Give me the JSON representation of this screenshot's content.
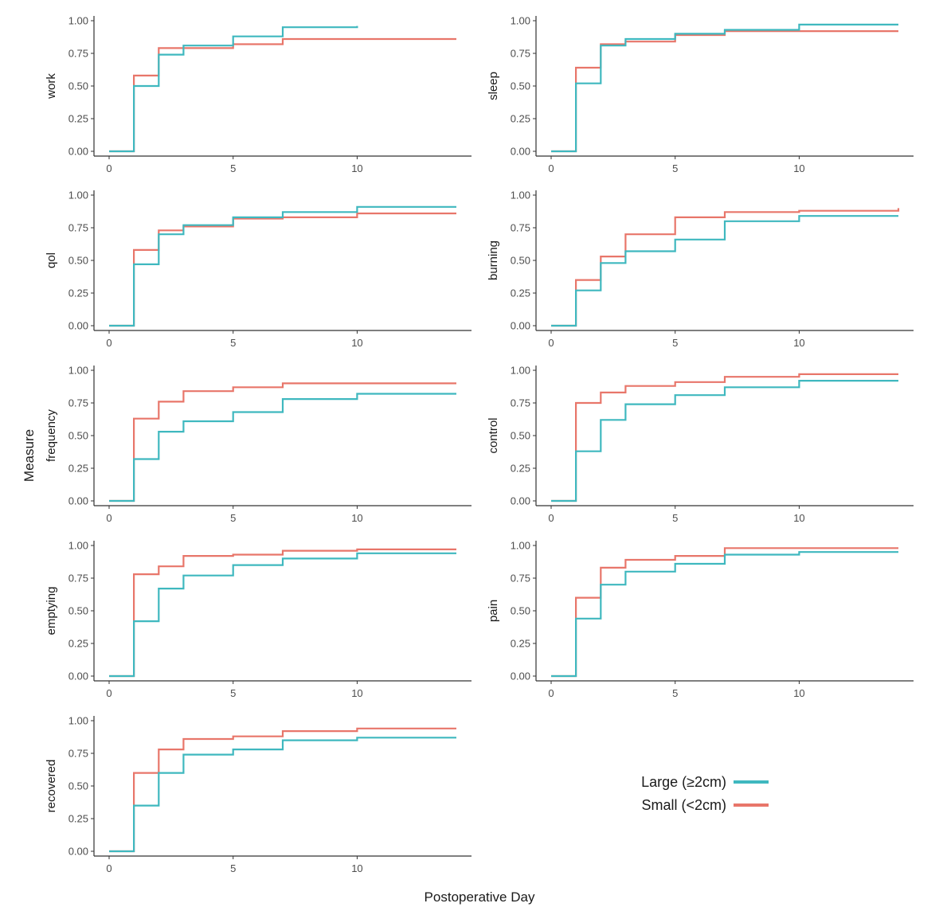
{
  "chart_data": {
    "type": "line",
    "step": "post",
    "xlabel": "Postoperative Day",
    "ylabel": "Measure",
    "xlim": [
      0,
      14
    ],
    "ylim": [
      0,
      1
    ],
    "x_ticks": [
      0,
      5,
      10
    ],
    "x_tick_labels": [
      "0",
      "5",
      "10"
    ],
    "y_ticks": [
      0,
      0.25,
      0.5,
      0.75,
      1
    ],
    "y_tick_labels": [
      "0.00",
      "0.25",
      "0.50",
      "0.75",
      "1.00"
    ],
    "grid": false,
    "legend_position": "bottom-right",
    "legend": [
      {
        "label": "Large (≥2cm)",
        "color": "#3FB8BF"
      },
      {
        "label": "Small (<2cm)",
        "color": "#E8766A"
      }
    ],
    "panels": [
      {
        "label": "work",
        "large": {
          "x": [
            0,
            1,
            2,
            3,
            5,
            7,
            10
          ],
          "y": [
            0,
            0.5,
            0.74,
            0.81,
            0.88,
            0.95,
            0.96
          ]
        },
        "small": {
          "x": [
            0,
            1,
            2,
            3,
            5,
            7,
            14
          ],
          "y": [
            0,
            0.58,
            0.79,
            0.79,
            0.82,
            0.86,
            0.86
          ]
        }
      },
      {
        "label": "sleep",
        "large": {
          "x": [
            0,
            1,
            2,
            3,
            5,
            7,
            10,
            14
          ],
          "y": [
            0,
            0.52,
            0.81,
            0.86,
            0.9,
            0.93,
            0.97,
            0.97
          ]
        },
        "small": {
          "x": [
            0,
            1,
            2,
            3,
            5,
            7,
            10,
            14
          ],
          "y": [
            0,
            0.64,
            0.82,
            0.84,
            0.89,
            0.92,
            0.92,
            0.92
          ]
        }
      },
      {
        "label": "qol",
        "large": {
          "x": [
            0,
            1,
            2,
            3,
            5,
            7,
            10,
            14
          ],
          "y": [
            0,
            0.47,
            0.7,
            0.77,
            0.83,
            0.87,
            0.91,
            0.91
          ]
        },
        "small": {
          "x": [
            0,
            1,
            2,
            3,
            5,
            7,
            10,
            14
          ],
          "y": [
            0,
            0.58,
            0.73,
            0.76,
            0.82,
            0.83,
            0.86,
            0.86
          ]
        }
      },
      {
        "label": "burning",
        "large": {
          "x": [
            0,
            1,
            2,
            3,
            5,
            7,
            10,
            14
          ],
          "y": [
            0,
            0.27,
            0.48,
            0.57,
            0.66,
            0.8,
            0.84,
            0.84
          ]
        },
        "small": {
          "x": [
            0,
            1,
            2,
            3,
            5,
            7,
            10,
            14
          ],
          "y": [
            0,
            0.35,
            0.53,
            0.7,
            0.83,
            0.87,
            0.88,
            0.9
          ]
        }
      },
      {
        "label": "frequency",
        "large": {
          "x": [
            0,
            1,
            2,
            3,
            5,
            7,
            10,
            14
          ],
          "y": [
            0,
            0.32,
            0.53,
            0.61,
            0.68,
            0.78,
            0.82,
            0.82
          ]
        },
        "small": {
          "x": [
            0,
            1,
            2,
            3,
            5,
            7,
            10,
            14
          ],
          "y": [
            0,
            0.63,
            0.76,
            0.84,
            0.87,
            0.9,
            0.9,
            0.9
          ]
        }
      },
      {
        "label": "control",
        "large": {
          "x": [
            0,
            1,
            2,
            3,
            5,
            7,
            10,
            14
          ],
          "y": [
            0,
            0.38,
            0.62,
            0.74,
            0.81,
            0.87,
            0.92,
            0.92
          ]
        },
        "small": {
          "x": [
            0,
            1,
            2,
            3,
            5,
            7,
            10,
            14
          ],
          "y": [
            0,
            0.75,
            0.83,
            0.88,
            0.91,
            0.95,
            0.97,
            0.97
          ]
        }
      },
      {
        "label": "emptying",
        "large": {
          "x": [
            0,
            1,
            2,
            3,
            5,
            7,
            10,
            14
          ],
          "y": [
            0,
            0.42,
            0.67,
            0.77,
            0.85,
            0.9,
            0.94,
            0.94
          ]
        },
        "small": {
          "x": [
            0,
            1,
            2,
            3,
            5,
            7,
            10,
            14
          ],
          "y": [
            0,
            0.78,
            0.84,
            0.92,
            0.93,
            0.96,
            0.97,
            0.97
          ]
        }
      },
      {
        "label": "pain",
        "large": {
          "x": [
            0,
            1,
            2,
            3,
            5,
            7,
            10,
            14
          ],
          "y": [
            0,
            0.44,
            0.7,
            0.8,
            0.86,
            0.93,
            0.95,
            0.95
          ]
        },
        "small": {
          "x": [
            0,
            1,
            2,
            3,
            5,
            7,
            10,
            14
          ],
          "y": [
            0,
            0.6,
            0.83,
            0.89,
            0.92,
            0.98,
            0.98,
            0.98
          ]
        }
      },
      {
        "label": "recovered",
        "large": {
          "x": [
            0,
            1,
            2,
            3,
            5,
            7,
            10,
            14
          ],
          "y": [
            0,
            0.35,
            0.6,
            0.74,
            0.78,
            0.85,
            0.87,
            0.87
          ]
        },
        "small": {
          "x": [
            0,
            1,
            2,
            3,
            5,
            7,
            10,
            14
          ],
          "y": [
            0,
            0.6,
            0.78,
            0.86,
            0.88,
            0.92,
            0.94,
            0.94
          ]
        }
      }
    ]
  }
}
